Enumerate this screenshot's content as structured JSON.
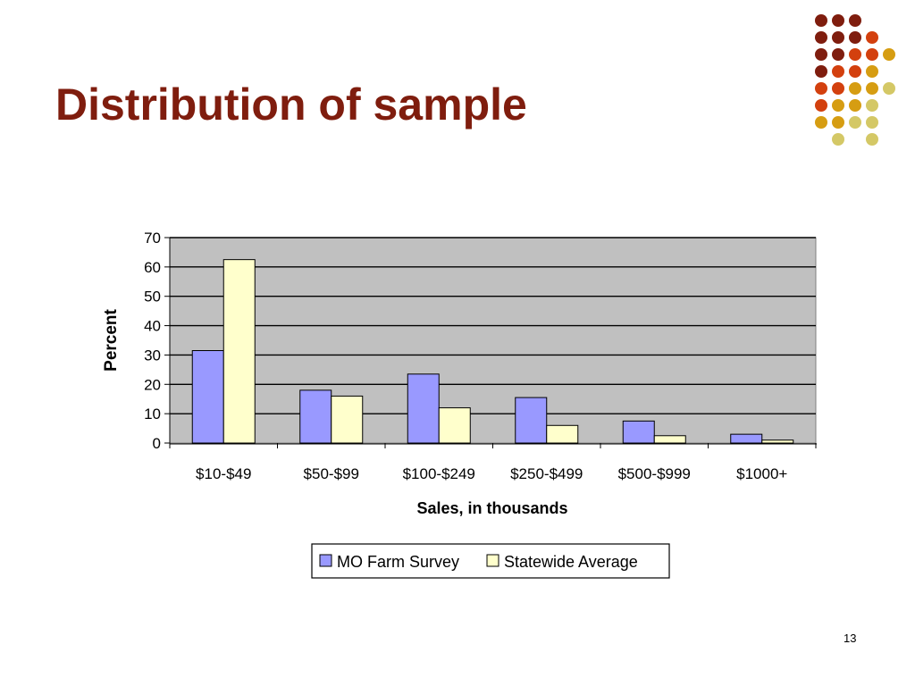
{
  "slide": {
    "title": "Distribution of sample",
    "page_number": "13"
  },
  "decoration": {
    "name": "dot-grid-ornament",
    "colors": [
      "#7f1d0e",
      "#d3400e",
      "#d69d12",
      "#d4c866"
    ]
  },
  "chart_data": {
    "type": "bar",
    "title": "",
    "xlabel": "Sales, in thousands",
    "ylabel": "Percent",
    "ylim": [
      0,
      70
    ],
    "yticks": [
      0,
      10,
      20,
      30,
      40,
      50,
      60,
      70
    ],
    "grid": true,
    "plot_background": "#c0c0c0",
    "legend_placement": "bottom",
    "categories": [
      "$10-$49",
      "$50-$99",
      "$100-$249",
      "$250-$499",
      "$500-$999",
      "$1000+"
    ],
    "series": [
      {
        "name": "MO Farm Survey",
        "color": "#9999ff",
        "values": [
          31.5,
          18,
          23.5,
          15.5,
          7.5,
          3
        ]
      },
      {
        "name": "Statewide Average",
        "color": "#ffffcc",
        "values": [
          62.5,
          16,
          12,
          6,
          2.5,
          1
        ]
      }
    ]
  }
}
